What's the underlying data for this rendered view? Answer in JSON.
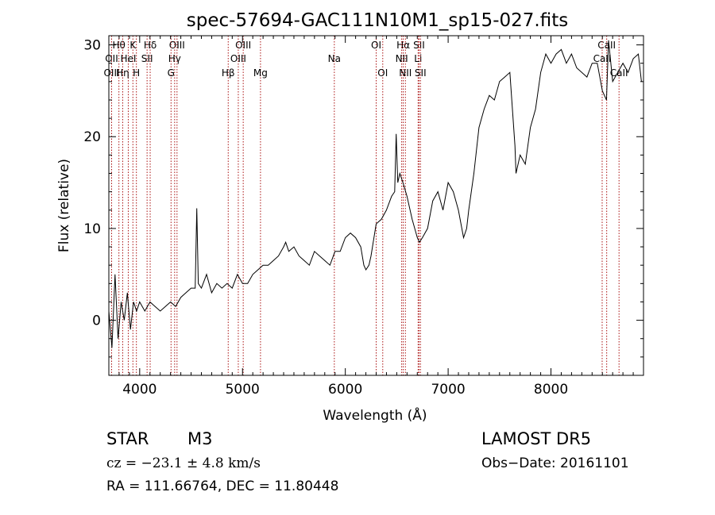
{
  "chart_data": {
    "type": "line",
    "title": "spec-57694-GAC111N10M1_sp15-027.fits",
    "xlabel": "Wavelength (Å)",
    "ylabel": "Flux (relative)",
    "xlim": [
      3700,
      8900
    ],
    "ylim": [
      -6,
      31
    ],
    "xticks": [
      4000,
      5000,
      6000,
      7000,
      8000
    ],
    "yticks": [
      0,
      10,
      20,
      30
    ],
    "grid": false,
    "line_color": "#000000",
    "marker_color": "#aa1111",
    "series": [
      {
        "x": [
          3700,
          3730,
          3760,
          3790,
          3820,
          3850,
          3880,
          3910,
          3940,
          3970,
          4000,
          4050,
          4100,
          4150,
          4200,
          4250,
          4300,
          4350,
          4400,
          4450,
          4500,
          4540,
          4555,
          4570,
          4600,
          4650,
          4700,
          4750,
          4800,
          4850,
          4900,
          4950,
          5000,
          5050,
          5100,
          5150,
          5200,
          5250,
          5300,
          5350,
          5400,
          5420,
          5450,
          5500,
          5550,
          5600,
          5650,
          5700,
          5750,
          5800,
          5850,
          5900,
          5950,
          6000,
          6050,
          6100,
          6150,
          6180,
          6200,
          6230,
          6250,
          6300,
          6350,
          6400,
          6450,
          6480,
          6495,
          6510,
          6530,
          6560,
          6600,
          6650,
          6700,
          6720,
          6750,
          6800,
          6850,
          6900,
          6950,
          7000,
          7050,
          7100,
          7150,
          7180,
          7200,
          7250,
          7300,
          7350,
          7400,
          7450,
          7500,
          7550,
          7600,
          7650,
          7660,
          7700,
          7750,
          7800,
          7850,
          7900,
          7950,
          8000,
          8050,
          8100,
          8150,
          8200,
          8250,
          8300,
          8350,
          8400,
          8450,
          8500,
          8540,
          8560,
          8600,
          8650,
          8700,
          8750,
          8800,
          8850,
          8880
        ],
        "y": [
          1,
          -3,
          5,
          -2,
          2,
          0,
          3,
          -1,
          2,
          1,
          2,
          1,
          2,
          1.5,
          1,
          1.5,
          2,
          1.5,
          2.5,
          3,
          3.5,
          3.5,
          12.2,
          4,
          3.5,
          5,
          3,
          4,
          3.5,
          4,
          3.5,
          5,
          4,
          4,
          5,
          5.5,
          6,
          6,
          6.5,
          7,
          8,
          8.5,
          7.5,
          8,
          7,
          6.5,
          6,
          7.5,
          7,
          6.5,
          6,
          7.5,
          7.5,
          9,
          9.5,
          9,
          8,
          6,
          5.5,
          6,
          7,
          10.5,
          11,
          12,
          13.5,
          14,
          20.3,
          15,
          16,
          15,
          13.5,
          11,
          9,
          8.5,
          9,
          10,
          13,
          14,
          12,
          15,
          14,
          12,
          9,
          10,
          12,
          16,
          21,
          23,
          24.5,
          24,
          26,
          26.5,
          27,
          19,
          16,
          18,
          17,
          21,
          23,
          27,
          29,
          28,
          29,
          29.5,
          28,
          29,
          27.5,
          27,
          26.5,
          28,
          28,
          25,
          24,
          30.5,
          26,
          27,
          28,
          27,
          28.5,
          29,
          26
        ]
      }
    ],
    "spectral_lines": [
      {
        "label": "Hθ",
        "wavelength": 3798,
        "row": 0
      },
      {
        "label": "K",
        "wavelength": 3934,
        "row": 0
      },
      {
        "label": "Hδ",
        "wavelength": 4102,
        "row": 0
      },
      {
        "label": "OIII",
        "wavelength": 4363,
        "row": 0
      },
      {
        "label": "OIII",
        "wavelength": 5007,
        "row": 0
      },
      {
        "label": "OI",
        "wavelength": 6300,
        "row": 0
      },
      {
        "label": "Hα",
        "wavelength": 6563,
        "row": 0
      },
      {
        "label": "SII",
        "wavelength": 6717,
        "row": 0
      },
      {
        "label": "CaII",
        "wavelength": 8542,
        "row": 0
      },
      {
        "label": "OII",
        "wavelength": 3727,
        "row": 1
      },
      {
        "label": "HeI",
        "wavelength": 3889,
        "row": 1
      },
      {
        "label": "SII",
        "wavelength": 4072,
        "row": 1
      },
      {
        "label": "Hγ",
        "wavelength": 4340,
        "row": 1
      },
      {
        "label": "OIII",
        "wavelength": 4959,
        "row": 1
      },
      {
        "label": "NII",
        "wavelength": 6548,
        "row": 1
      },
      {
        "label": "Li",
        "wavelength": 6708,
        "row": 1
      },
      {
        "label": "CaII",
        "wavelength": 8498,
        "row": 1
      },
      {
        "label": "OIII",
        "wavelength": 3727,
        "row": 2
      },
      {
        "label": "Hη",
        "wavelength": 3835,
        "row": 2
      },
      {
        "label": "H",
        "wavelength": 3968,
        "row": 2
      },
      {
        "label": "G",
        "wavelength": 4305,
        "row": 2
      },
      {
        "label": "Hβ",
        "wavelength": 4861,
        "row": 2
      },
      {
        "label": "Mg",
        "wavelength": 5175,
        "row": 2
      },
      {
        "label": "Na",
        "wavelength": 5893,
        "row": 1
      },
      {
        "label": "OI",
        "wavelength": 6364,
        "row": 2
      },
      {
        "label": "NII",
        "wavelength": 6584,
        "row": 2
      },
      {
        "label": "SII",
        "wavelength": 6731,
        "row": 2
      },
      {
        "label": "CaII",
        "wavelength": 8662,
        "row": 2
      }
    ]
  },
  "info": {
    "object_class": "STAR",
    "subclass": "M3",
    "survey": "LAMOST  DR5",
    "cz": "cz = −23.1 ± 4.8 km/s",
    "obs_date": "Obs−Date: 20161101",
    "coords": "RA = 111.66764, DEC =  11.80448"
  }
}
